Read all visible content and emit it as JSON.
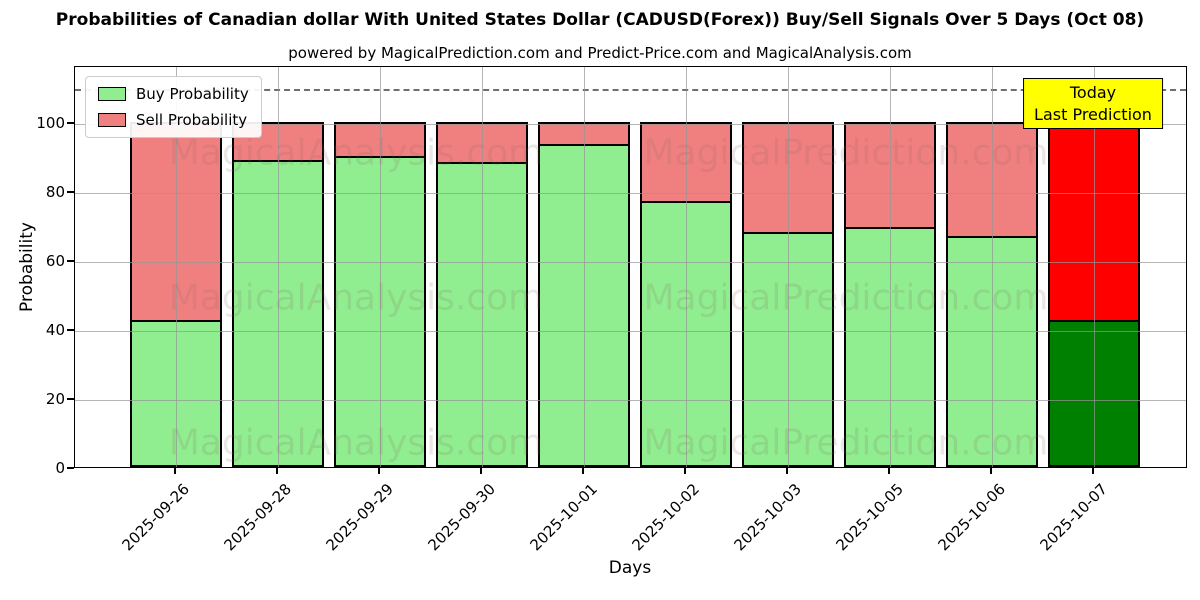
{
  "title": "Probabilities of Canadian dollar With United States Dollar (CADUSD(Forex)) Buy/Sell Signals Over 5 Days (Oct 08)",
  "subtitle": "powered by MagicalPrediction.com and Predict-Price.com and MagicalAnalysis.com",
  "legend": {
    "items": [
      {
        "label": "Buy Probability",
        "color": "#90ee90"
      },
      {
        "label": "Sell Probability",
        "color": "#f08080"
      }
    ]
  },
  "annotation": {
    "line1": "Today",
    "line2": "Last Prediction",
    "bg_color": "#ffff00",
    "border_color": "#000000"
  },
  "watermarks": {
    "left": "MagicalAnalysis.com",
    "right": "MagicalPrediction.com"
  },
  "chart_data": {
    "type": "bar",
    "stacked": true,
    "title": "Probabilities of Canadian dollar With United States Dollar (CADUSD(Forex)) Buy/Sell Signals Over 5 Days (Oct 08)",
    "xlabel": "Days",
    "ylabel": "Probability",
    "categories": [
      "2025-09-26",
      "2025-09-28",
      "2025-09-29",
      "2025-09-30",
      "2025-10-01",
      "2025-10-02",
      "2025-10-03",
      "2025-10-05",
      "2025-10-06",
      "2025-10-07"
    ],
    "series": [
      {
        "name": "Buy Probability",
        "color": "#90ee90",
        "values": [
          42,
          88.5,
          89.5,
          88,
          93,
          76.5,
          67.5,
          69,
          66.5,
          42
        ]
      },
      {
        "name": "Sell Probability",
        "color": "#f08080",
        "values": [
          58,
          11.5,
          10.5,
          12,
          7,
          23.5,
          32.5,
          31,
          33.5,
          58
        ]
      }
    ],
    "highlight_category": "2025-10-07",
    "highlight_colors": {
      "buy": "#008000",
      "sell": "#ff0000"
    },
    "bar_edge_color": "#000000",
    "ylim": [
      0,
      116.6
    ],
    "yticks": [
      0,
      20,
      40,
      60,
      80,
      100
    ],
    "dashed_line_y": 110,
    "grid": true,
    "legend_position": "upper left"
  }
}
